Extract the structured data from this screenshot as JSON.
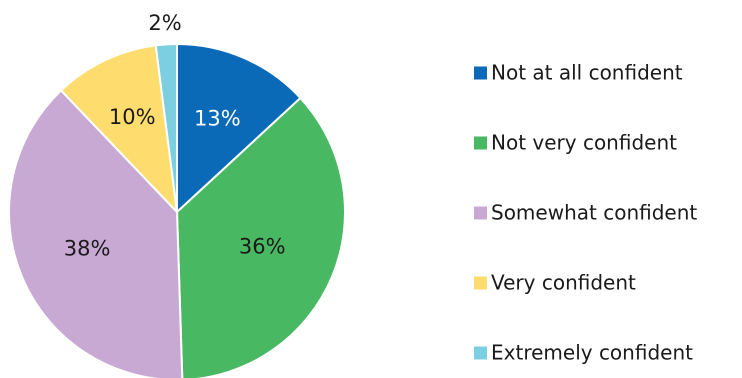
{
  "chart_data": {
    "type": "pie",
    "categories": [
      "Not at all confident",
      "Not very confident",
      "Somewhat confident",
      "Very confident",
      "Extremely confident"
    ],
    "values": [
      13,
      36,
      38,
      10,
      2
    ],
    "labels": [
      "13%",
      "36%",
      "38%",
      "10%",
      "2%"
    ],
    "colors": [
      "#0a6ab8",
      "#49b863",
      "#c8a9d3",
      "#fedd6e",
      "#7bcfe0"
    ],
    "label_colors": [
      "#ffffff",
      "#1a1a1a",
      "#1a1a1a",
      "#1a1a1a",
      "#1a1a1a"
    ],
    "start_angle_deg": 0,
    "direction": "clockwise",
    "legend_position": "right"
  }
}
